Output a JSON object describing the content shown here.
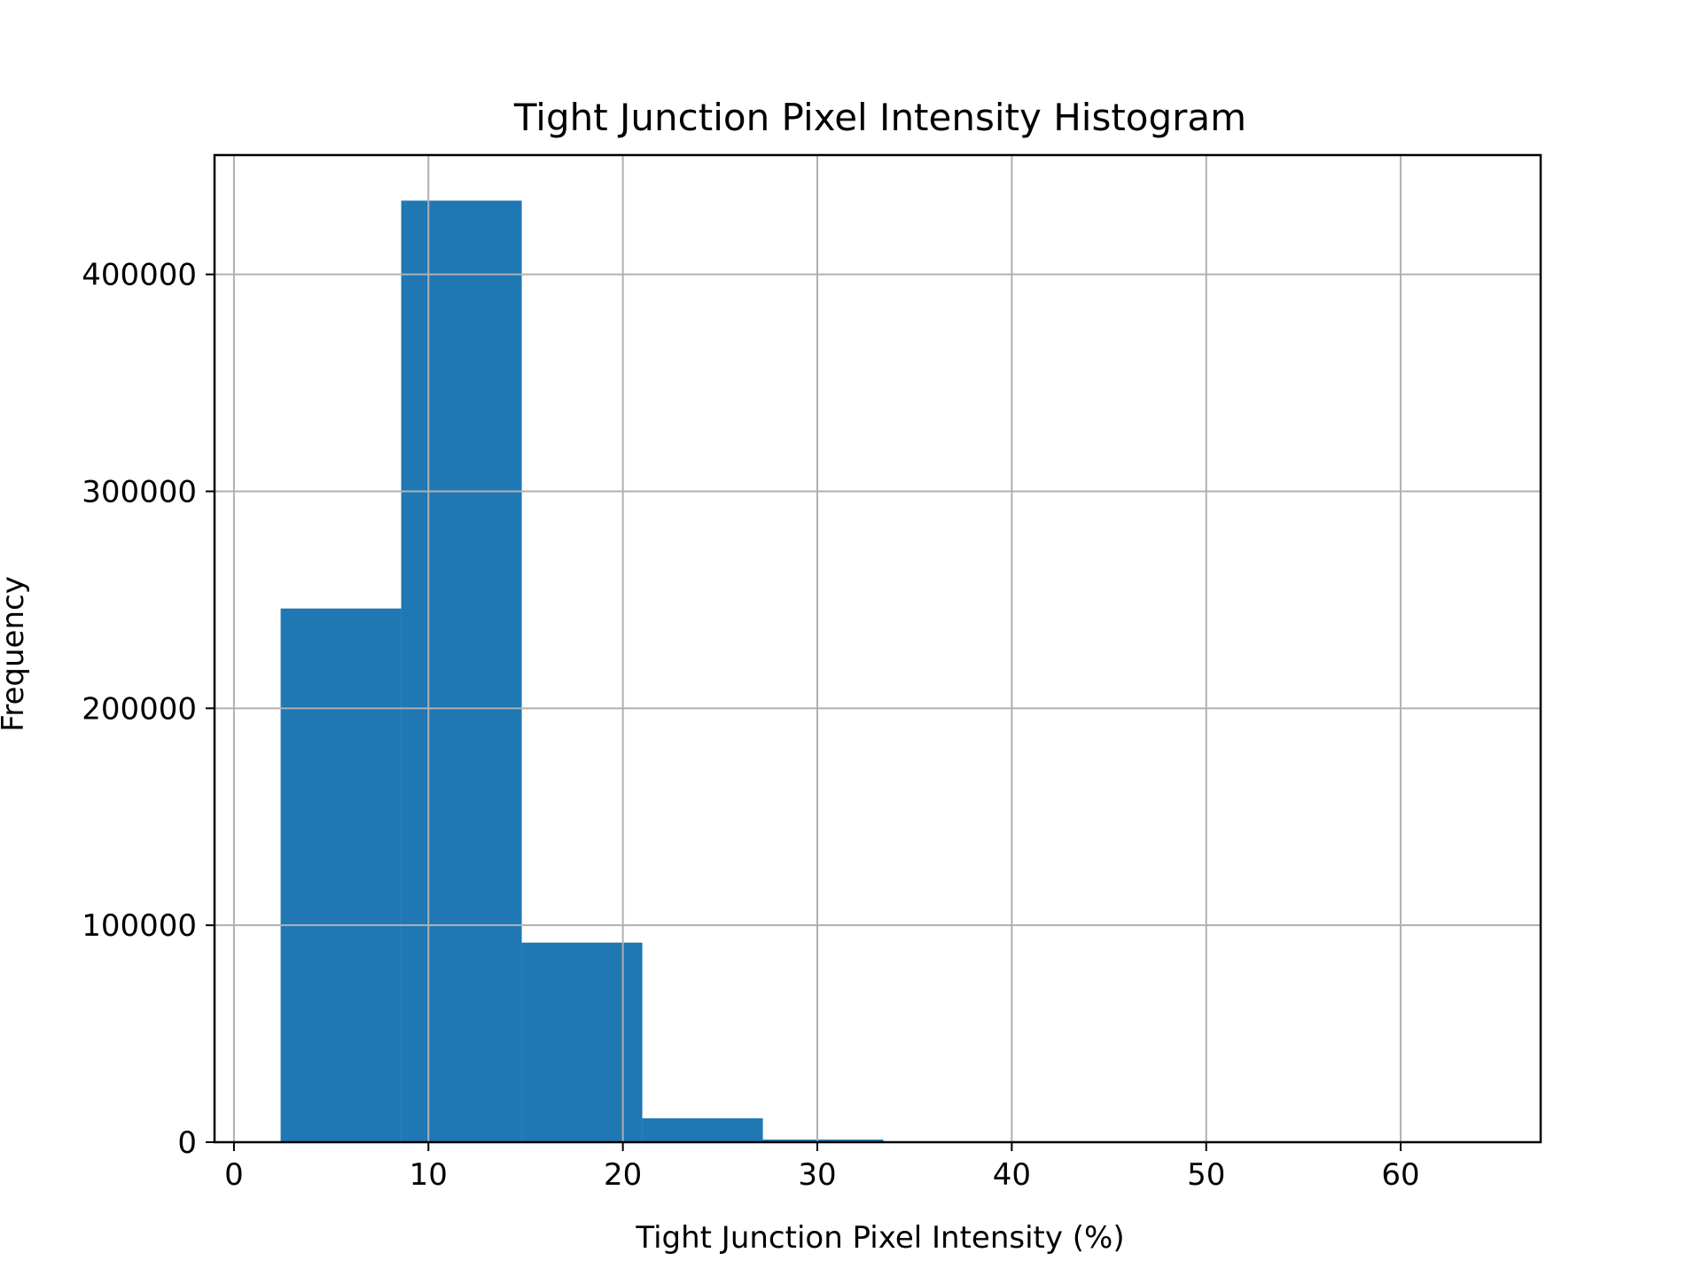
{
  "chart_data": {
    "type": "bar",
    "title": "Tight Junction Pixel Intensity Histogram",
    "xlabel": "Tight Junction Pixel Intensity (%)",
    "ylabel": "Frequency",
    "xlim": [
      -1,
      67.2
    ],
    "ylim": [
      0,
      455000
    ],
    "xticks": [
      0,
      10,
      20,
      30,
      40,
      50,
      60
    ],
    "yticks": [
      0,
      100000,
      200000,
      300000,
      400000
    ],
    "grid": true,
    "bar_color": "#1f77b4",
    "bins": [
      {
        "x0": 2.4,
        "x1": 8.6,
        "count": 246000
      },
      {
        "x0": 8.6,
        "x1": 14.8,
        "count": 434000
      },
      {
        "x0": 14.8,
        "x1": 21.0,
        "count": 92000
      },
      {
        "x0": 21.0,
        "x1": 27.2,
        "count": 11000
      },
      {
        "x0": 27.2,
        "x1": 33.4,
        "count": 1200
      },
      {
        "x0": 33.4,
        "x1": 39.6,
        "count": 150
      },
      {
        "x0": 39.6,
        "x1": 45.8,
        "count": 30
      },
      {
        "x0": 45.8,
        "x1": 52.0,
        "count": 10
      },
      {
        "x0": 52.0,
        "x1": 58.2,
        "count": 5
      },
      {
        "x0": 58.2,
        "x1": 64.4,
        "count": 2
      }
    ]
  }
}
